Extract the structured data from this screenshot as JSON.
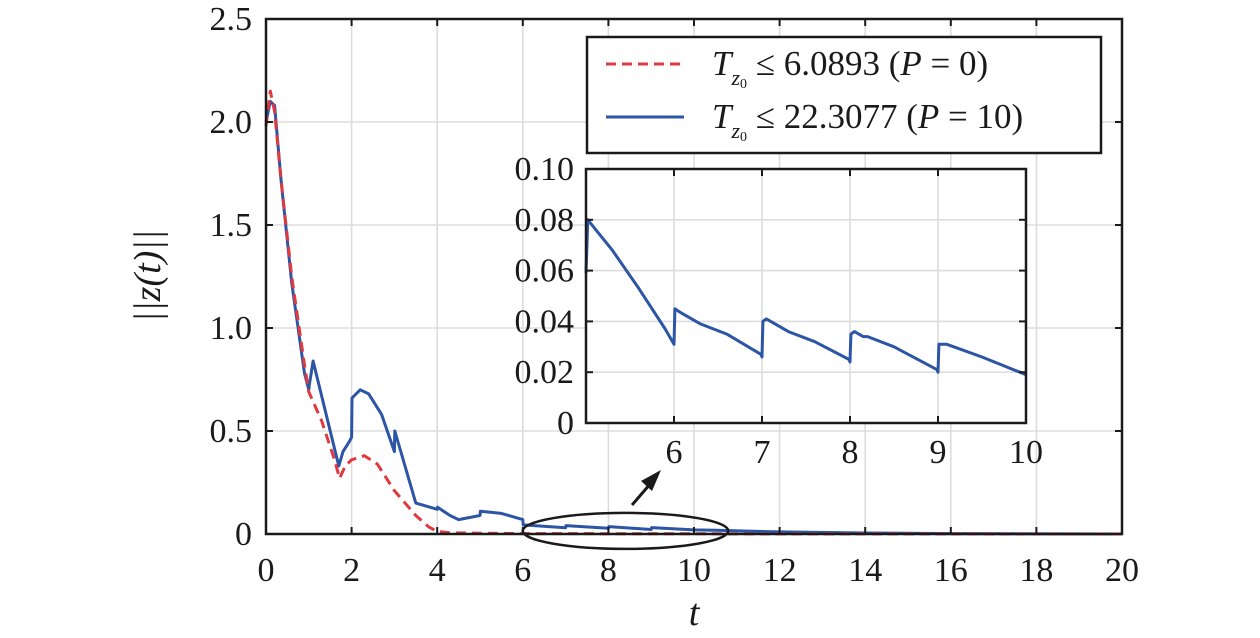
{
  "chart_data": [
    {
      "type": "line",
      "xlabel": "t",
      "ylabel": "||z(t)||",
      "xlim": [
        0,
        20
      ],
      "ylim": [
        0,
        2.5
      ],
      "x_ticks": [
        "0",
        "2",
        "4",
        "6",
        "8",
        "10",
        "12",
        "14",
        "16",
        "18",
        "20"
      ],
      "y_ticks": [
        "0",
        "0.5",
        "1.0",
        "1.5",
        "2.0",
        "2.5"
      ],
      "grid": true,
      "legend_position": "top-right",
      "legend": {
        "entries": [
          {
            "prefix": "T",
            "sub": "z",
            "subsub": "0",
            "rest": " ≤ 6.0893 (",
            "p": "P",
            "tail": " = 0)",
            "style": "dashed",
            "color": "#e0393e"
          },
          {
            "prefix": "T",
            "sub": "z",
            "subsub": "0",
            "rest": " ≤ 22.3077 (",
            "p": "P",
            "tail": " = 10)",
            "style": "solid",
            "color": "#2d55a6"
          }
        ]
      },
      "series": [
        {
          "style": "dashed",
          "color": "#e0393e",
          "x": [
            0,
            0.1,
            0.2,
            0.35,
            0.6,
            0.9,
            1.0,
            1.3,
            1.6,
            1.72,
            1.85,
            2.0,
            2.3,
            2.6,
            3.0,
            3.5,
            3.8,
            4.0,
            4.3,
            5.0,
            6.0,
            10,
            20
          ],
          "y": [
            1.98,
            2.15,
            2.05,
            1.72,
            1.25,
            0.82,
            0.69,
            0.55,
            0.36,
            0.27,
            0.33,
            0.36,
            0.38,
            0.34,
            0.21,
            0.09,
            0.035,
            0.012,
            0.006,
            0.004,
            0.002,
            0.001,
            0.0
          ]
        },
        {
          "style": "solid",
          "color": "#2d55a6",
          "x": [
            0,
            0.1,
            0.2,
            0.35,
            0.6,
            0.9,
            1.0,
            1.01,
            1.1,
            1.5,
            1.7,
            1.8,
            1.95,
            2.0,
            2.01,
            2.2,
            2.4,
            2.7,
            3.0,
            3.01,
            3.5,
            4.0,
            4.01,
            4.3,
            4.5,
            5.0,
            5.01,
            5.5,
            6.0,
            6.01,
            7.0,
            7.01,
            8.0,
            8.01,
            9.0,
            9.01,
            10.0,
            10.5,
            12,
            14,
            16,
            20
          ],
          "y": [
            2.0,
            2.1,
            2.08,
            1.72,
            1.22,
            0.78,
            0.7,
            0.72,
            0.84,
            0.5,
            0.33,
            0.4,
            0.45,
            0.47,
            0.66,
            0.7,
            0.68,
            0.58,
            0.4,
            0.5,
            0.15,
            0.12,
            0.13,
            0.09,
            0.07,
            0.09,
            0.11,
            0.1,
            0.07,
            0.044,
            0.03,
            0.041,
            0.028,
            0.036,
            0.022,
            0.031,
            0.02,
            0.018,
            0.01,
            0.005,
            0.002,
            0.0
          ]
        }
      ],
      "annotation": {
        "type": "ellipse",
        "x_range": [
          6,
          10.8
        ],
        "y_center": 0.015
      }
    },
    {
      "type": "line",
      "role": "inset",
      "xlim": [
        5,
        10
      ],
      "ylim": [
        0,
        0.1
      ],
      "x_ticks": [
        "6",
        "7",
        "8",
        "9",
        "10"
      ],
      "y_ticks": [
        "0",
        "0.02",
        "0.04",
        "0.06",
        "0.08",
        "0.10"
      ],
      "grid": true,
      "series": [
        {
          "style": "solid",
          "color": "#2d55a6",
          "x": [
            5.0,
            5.02,
            5.3,
            5.6,
            5.9,
            6.0,
            6.01,
            6.05,
            6.1,
            6.3,
            6.6,
            6.99,
            7.0,
            7.01,
            7.05,
            7.3,
            7.6,
            7.99,
            8.0,
            8.01,
            8.05,
            8.15,
            8.2,
            8.5,
            8.99,
            9.0,
            9.01,
            9.1,
            9.5,
            10.0
          ],
          "y": [
            0.059,
            0.08,
            0.068,
            0.053,
            0.037,
            0.031,
            0.045,
            0.044,
            0.043,
            0.039,
            0.035,
            0.027,
            0.026,
            0.04,
            0.041,
            0.036,
            0.032,
            0.025,
            0.024,
            0.035,
            0.036,
            0.034,
            0.034,
            0.03,
            0.021,
            0.02,
            0.031,
            0.031,
            0.026,
            0.019
          ]
        }
      ]
    }
  ]
}
